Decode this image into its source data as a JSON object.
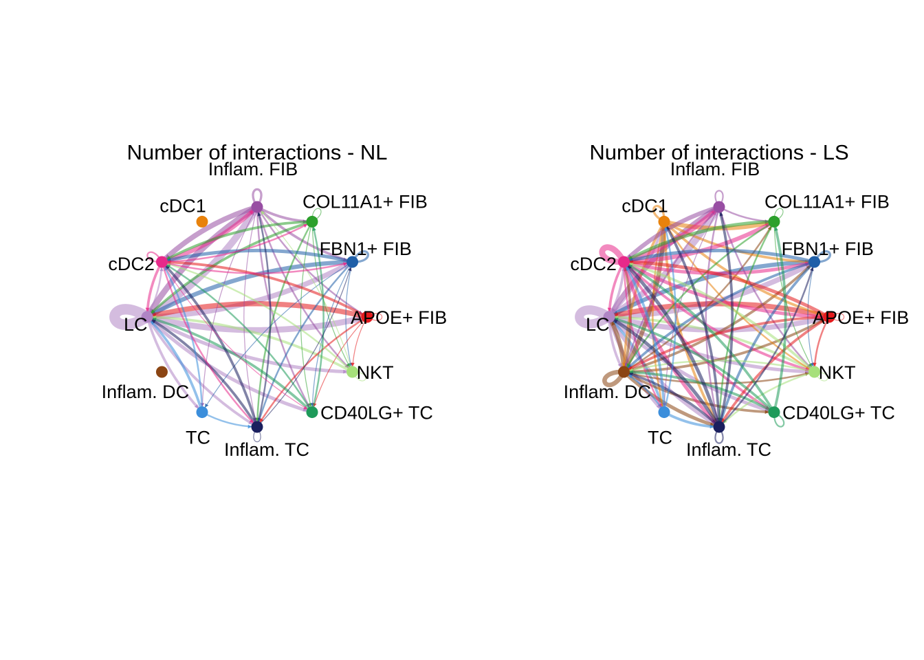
{
  "nodes": [
    {
      "id": "Inflam. FIB",
      "label": "Inflam. FIB",
      "color": "#984EA3"
    },
    {
      "id": "COL11A1+ FIB",
      "label": "COL11A1+ FIB",
      "color": "#2CA02C"
    },
    {
      "id": "FBN1+ FIB",
      "label": "FBN1+ FIB",
      "color": "#1F5FA8"
    },
    {
      "id": "APOE+ FIB",
      "label": "APOE+ FIB",
      "color": "#E41A1C"
    },
    {
      "id": "NKT",
      "label": "NKT",
      "color": "#A6E07A"
    },
    {
      "id": "CD40LG+ TC",
      "label": "CD40LG+ TC",
      "color": "#1E9A5A"
    },
    {
      "id": "Inflam. TC",
      "label": "Inflam. TC",
      "color": "#1A1F5E"
    },
    {
      "id": "TC",
      "label": "TC",
      "color": "#3B8EDB"
    },
    {
      "id": "Inflam. DC",
      "label": "Inflam. DC",
      "color": "#8B4513"
    },
    {
      "id": "LC",
      "label": "LC",
      "color": "#B085C5"
    },
    {
      "id": "cDC2",
      "label": "cDC2",
      "color": "#E7298A"
    },
    {
      "id": "cDC1",
      "label": "cDC1",
      "color": "#E8820C"
    }
  ],
  "panels": [
    {
      "title": "Number of interactions - NL",
      "edges": [
        [
          "LC",
          "LC",
          14
        ],
        [
          "LC",
          "Inflam. FIB",
          8
        ],
        [
          "Inflam. FIB",
          "LC",
          7
        ],
        [
          "LC",
          "FBN1+ FIB",
          6
        ],
        [
          "FBN1+ FIB",
          "LC",
          5
        ],
        [
          "LC",
          "APOE+ FIB",
          7
        ],
        [
          "APOE+ FIB",
          "LC",
          6
        ],
        [
          "LC",
          "NKT",
          4
        ],
        [
          "NKT",
          "LC",
          3
        ],
        [
          "LC",
          "CD40LG+ TC",
          4
        ],
        [
          "LC",
          "Inflam. TC",
          3
        ],
        [
          "LC",
          "TC",
          3
        ],
        [
          "TC",
          "LC",
          3
        ],
        [
          "LC",
          "cDC2",
          2
        ],
        [
          "cDC2",
          "LC",
          3
        ],
        [
          "Inflam. FIB",
          "Inflam. FIB",
          3
        ],
        [
          "Inflam. FIB",
          "COL11A1+ FIB",
          3
        ],
        [
          "Inflam. FIB",
          "FBN1+ FIB",
          3
        ],
        [
          "Inflam. FIB",
          "APOE+ FIB",
          2
        ],
        [
          "Inflam. FIB",
          "cDC2",
          6
        ],
        [
          "cDC2",
          "Inflam. FIB",
          5
        ],
        [
          "Inflam. FIB",
          "CD40LG+ TC",
          2
        ],
        [
          "Inflam. FIB",
          "Inflam. TC",
          1
        ],
        [
          "Inflam. FIB",
          "NKT",
          2
        ],
        [
          "Inflam. FIB",
          "TC",
          1
        ],
        [
          "COL11A1+ FIB",
          "COL11A1+ FIB",
          1
        ],
        [
          "COL11A1+ FIB",
          "cDC2",
          3
        ],
        [
          "COL11A1+ FIB",
          "LC",
          3
        ],
        [
          "COL11A1+ FIB",
          "Inflam. TC",
          2
        ],
        [
          "COL11A1+ FIB",
          "CD40LG+ TC",
          1
        ],
        [
          "COL11A1+ FIB",
          "NKT",
          1
        ],
        [
          "FBN1+ FIB",
          "FBN1+ FIB",
          3
        ],
        [
          "FBN1+ FIB",
          "cDC2",
          4
        ],
        [
          "FBN1+ FIB",
          "Inflam. TC",
          2
        ],
        [
          "FBN1+ FIB",
          "CD40LG+ TC",
          1
        ],
        [
          "FBN1+ FIB",
          "NKT",
          1
        ],
        [
          "FBN1+ FIB",
          "TC",
          1
        ],
        [
          "APOE+ FIB",
          "APOE+ FIB",
          1
        ],
        [
          "APOE+ FIB",
          "cDC2",
          3
        ],
        [
          "APOE+ FIB",
          "Inflam. TC",
          2
        ],
        [
          "APOE+ FIB",
          "NKT",
          1
        ],
        [
          "APOE+ FIB",
          "CD40LG+ TC",
          1
        ],
        [
          "NKT",
          "NKT",
          1
        ],
        [
          "NKT",
          "cDC2",
          2
        ],
        [
          "NKT",
          "Inflam. FIB",
          1
        ],
        [
          "CD40LG+ TC",
          "cDC2",
          2
        ],
        [
          "CD40LG+ TC",
          "LC",
          3
        ],
        [
          "CD40LG+ TC",
          "COL11A1+ FIB",
          2
        ],
        [
          "Inflam. TC",
          "Inflam. TC",
          1
        ],
        [
          "Inflam. TC",
          "LC",
          3
        ],
        [
          "Inflam. TC",
          "cDC2",
          3
        ],
        [
          "Inflam. TC",
          "Inflam. FIB",
          2
        ],
        [
          "Inflam. TC",
          "FBN1+ FIB",
          1
        ],
        [
          "TC",
          "Inflam. TC",
          2
        ],
        [
          "TC",
          "cDC2",
          2
        ],
        [
          "cDC2",
          "cDC2",
          2
        ],
        [
          "cDC2",
          "COL11A1+ FIB",
          2
        ],
        [
          "cDC2",
          "FBN1+ FIB",
          2
        ],
        [
          "cDC2",
          "Inflam. TC",
          2
        ],
        [
          "cDC2",
          "CD40LG+ TC",
          1
        ]
      ]
    },
    {
      "title": "Number of interactions - LS",
      "edges": [
        [
          "LC",
          "LC",
          12
        ],
        [
          "LC",
          "Inflam. FIB",
          7
        ],
        [
          "Inflam. FIB",
          "LC",
          6
        ],
        [
          "LC",
          "FBN1+ FIB",
          6
        ],
        [
          "FBN1+ FIB",
          "LC",
          5
        ],
        [
          "LC",
          "APOE+ FIB",
          6
        ],
        [
          "APOE+ FIB",
          "LC",
          6
        ],
        [
          "LC",
          "NKT",
          4
        ],
        [
          "NKT",
          "LC",
          3
        ],
        [
          "LC",
          "CD40LG+ TC",
          4
        ],
        [
          "LC",
          "Inflam. TC",
          4
        ],
        [
          "LC",
          "TC",
          4
        ],
        [
          "TC",
          "LC",
          3
        ],
        [
          "LC",
          "cDC2",
          3
        ],
        [
          "cDC2",
          "LC",
          3
        ],
        [
          "LC",
          "cDC1",
          3
        ],
        [
          "LC",
          "Inflam. DC",
          3
        ],
        [
          "Inflam. DC",
          "Inflam. DC",
          6
        ],
        [
          "Inflam. DC",
          "LC",
          5
        ],
        [
          "Inflam. DC",
          "cDC1",
          5
        ],
        [
          "Inflam. DC",
          "Inflam. TC",
          4
        ],
        [
          "Inflam. DC",
          "APOE+ FIB",
          3
        ],
        [
          "Inflam. DC",
          "FBN1+ FIB",
          3
        ],
        [
          "Inflam. DC",
          "CD40LG+ TC",
          3
        ],
        [
          "Inflam. DC",
          "cDC2",
          3
        ],
        [
          "Inflam. DC",
          "NKT",
          2
        ],
        [
          "Inflam. DC",
          "COL11A1+ FIB",
          2
        ],
        [
          "cDC1",
          "cDC1",
          3
        ],
        [
          "cDC1",
          "COL11A1+ FIB",
          5
        ],
        [
          "cDC1",
          "FBN1+ FIB",
          3
        ],
        [
          "cDC1",
          "Inflam. TC",
          3
        ],
        [
          "cDC1",
          "APOE+ FIB",
          3
        ],
        [
          "cDC1",
          "NKT",
          2
        ],
        [
          "cDC1",
          "TC",
          2
        ],
        [
          "cDC1",
          "Inflam. DC",
          3
        ],
        [
          "cDC2",
          "cDC2",
          8
        ],
        [
          "cDC2",
          "Inflam. FIB",
          6
        ],
        [
          "cDC2",
          "COL11A1+ FIB",
          5
        ],
        [
          "cDC2",
          "FBN1+ FIB",
          4
        ],
        [
          "cDC2",
          "APOE+ FIB",
          4
        ],
        [
          "cDC2",
          "Inflam. TC",
          4
        ],
        [
          "cDC2",
          "CD40LG+ TC",
          3
        ],
        [
          "cDC2",
          "NKT",
          3
        ],
        [
          "cDC2",
          "TC",
          2
        ],
        [
          "Inflam. FIB",
          "Inflam. FIB",
          2
        ],
        [
          "Inflam. FIB",
          "COL11A1+ FIB",
          2
        ],
        [
          "Inflam. FIB",
          "cDC2",
          5
        ],
        [
          "Inflam. FIB",
          "Inflam. TC",
          2
        ],
        [
          "Inflam. FIB",
          "NKT",
          2
        ],
        [
          "Inflam. FIB",
          "TC",
          1
        ],
        [
          "Inflam. FIB",
          "Inflam. DC",
          2
        ],
        [
          "COL11A1+ FIB",
          "COL11A1+ FIB",
          1
        ],
        [
          "COL11A1+ FIB",
          "cDC2",
          4
        ],
        [
          "COL11A1+ FIB",
          "Inflam. TC",
          2
        ],
        [
          "COL11A1+ FIB",
          "Inflam. DC",
          2
        ],
        [
          "COL11A1+ FIB",
          "NKT",
          1
        ],
        [
          "FBN1+ FIB",
          "FBN1+ FIB",
          3
        ],
        [
          "FBN1+ FIB",
          "cDC2",
          4
        ],
        [
          "FBN1+ FIB",
          "Inflam. TC",
          3
        ],
        [
          "FBN1+ FIB",
          "Inflam. DC",
          3
        ],
        [
          "FBN1+ FIB",
          "NKT",
          1
        ],
        [
          "APOE+ FIB",
          "APOE+ FIB",
          1
        ],
        [
          "APOE+ FIB",
          "cDC2",
          4
        ],
        [
          "APOE+ FIB",
          "Inflam. TC",
          3
        ],
        [
          "APOE+ FIB",
          "Inflam. DC",
          3
        ],
        [
          "APOE+ FIB",
          "NKT",
          2
        ],
        [
          "NKT",
          "NKT",
          1
        ],
        [
          "NKT",
          "cDC2",
          3
        ],
        [
          "NKT",
          "Inflam. DC",
          2
        ],
        [
          "NKT",
          "Inflam. TC",
          2
        ],
        [
          "CD40LG+ TC",
          "CD40LG+ TC",
          2
        ],
        [
          "CD40LG+ TC",
          "cDC2",
          3
        ],
        [
          "CD40LG+ TC",
          "LC",
          3
        ],
        [
          "CD40LG+ TC",
          "Inflam. DC",
          3
        ],
        [
          "CD40LG+ TC",
          "COL11A1+ FIB",
          3
        ],
        [
          "Inflam. TC",
          "Inflam. TC",
          2
        ],
        [
          "Inflam. TC",
          "LC",
          4
        ],
        [
          "Inflam. TC",
          "cDC2",
          4
        ],
        [
          "Inflam. TC",
          "Inflam. FIB",
          3
        ],
        [
          "Inflam. TC",
          "Inflam. DC",
          3
        ],
        [
          "Inflam. TC",
          "cDC1",
          3
        ],
        [
          "Inflam. TC",
          "FBN1+ FIB",
          2
        ],
        [
          "TC",
          "Inflam. TC",
          3
        ],
        [
          "TC",
          "cDC2",
          3
        ],
        [
          "TC",
          "Inflam. DC",
          2
        ],
        [
          "TC",
          "cDC1",
          2
        ]
      ]
    }
  ]
}
